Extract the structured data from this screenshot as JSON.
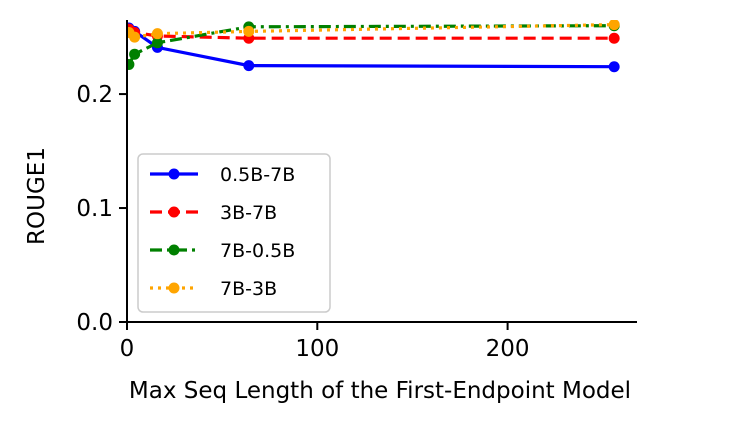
{
  "chart_data": {
    "type": "line",
    "title": "",
    "xlabel": "Max Seq Length of the First-Endpoint Model",
    "ylabel": "ROUGE1",
    "xlim": [
      0,
      268
    ],
    "ylim": [
      0,
      0.265
    ],
    "xticks": [
      0,
      100,
      200
    ],
    "yticks": [
      0.0,
      0.1,
      0.2
    ],
    "xtick_labels": [
      "0",
      "100",
      "200"
    ],
    "ytick_labels": [
      "0.0",
      "0.1",
      "0.2"
    ],
    "grid": false,
    "legend_position": "lower-left",
    "series": [
      {
        "name": "0.5B-7B",
        "color": "#0000ff",
        "linestyle": "solid",
        "x": [
          1,
          4,
          16,
          64,
          256
        ],
        "y": [
          0.258,
          0.255,
          0.241,
          0.225,
          0.224
        ]
      },
      {
        "name": "3B-7B",
        "color": "#ff0000",
        "linestyle": "dashed",
        "x": [
          1,
          4,
          16,
          64,
          256
        ],
        "y": [
          0.257,
          0.254,
          0.251,
          0.249,
          0.249
        ]
      },
      {
        "name": "7B-0.5B",
        "color": "#008000",
        "linestyle": "dashdot",
        "x": [
          1,
          4,
          16,
          64,
          256
        ],
        "y": [
          0.226,
          0.235,
          0.245,
          0.259,
          0.26
        ]
      },
      {
        "name": "7B-3B",
        "color": "#ffa500",
        "linestyle": "dotted",
        "x": [
          1,
          4,
          16,
          64,
          256
        ],
        "y": [
          0.254,
          0.25,
          0.253,
          0.255,
          0.261
        ]
      }
    ]
  }
}
